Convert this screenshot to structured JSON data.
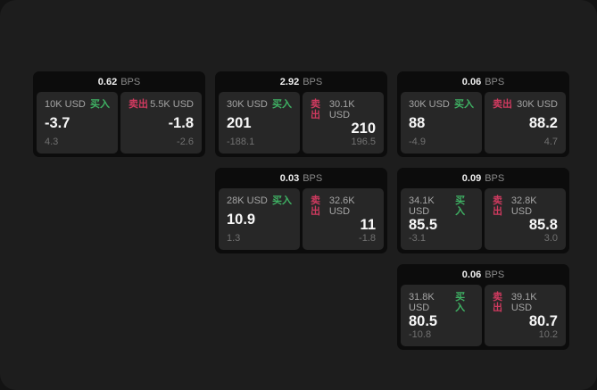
{
  "labels": {
    "bps": "BPS",
    "buy": "买入",
    "sell": "卖出"
  },
  "colors": {
    "outer_bg": "#131313",
    "panel_bg": "#1d1d1d",
    "card_bg": "#0c0c0c",
    "pane_bg": "#272727",
    "buy_accent": "#3fb264",
    "sell_accent": "#cf3a5f"
  },
  "cards": [
    {
      "bps": "0.62",
      "buy": {
        "notional": "10K USD",
        "value": "-3.7",
        "delta": "4.3"
      },
      "sell": {
        "notional": "5.5K USD",
        "value": "-1.8",
        "delta": "-2.6"
      }
    },
    {
      "bps": "2.92",
      "buy": {
        "notional": "30K USD",
        "value": "201",
        "delta": "-188.1"
      },
      "sell": {
        "notional": "30.1K USD",
        "value": "210",
        "delta": "196.5"
      }
    },
    {
      "bps": "0.06",
      "buy": {
        "notional": "30K USD",
        "value": "88",
        "delta": "-4.9"
      },
      "sell": {
        "notional": "30K USD",
        "value": "88.2",
        "delta": "4.7"
      }
    },
    {
      "bps": "0.03",
      "buy": {
        "notional": "28K USD",
        "value": "10.9",
        "delta": "1.3"
      },
      "sell": {
        "notional": "32.6K USD",
        "value": "11",
        "delta": "-1.8"
      }
    },
    {
      "bps": "0.09",
      "buy": {
        "notional": "34.1K USD",
        "value": "85.5",
        "delta": "-3.1"
      },
      "sell": {
        "notional": "32.8K USD",
        "value": "85.8",
        "delta": "3.0"
      }
    },
    {
      "bps": "0.06",
      "buy": {
        "notional": "31.8K USD",
        "value": "80.5",
        "delta": "-10.8"
      },
      "sell": {
        "notional": "39.1K USD",
        "value": "80.7",
        "delta": "10.2"
      }
    }
  ]
}
